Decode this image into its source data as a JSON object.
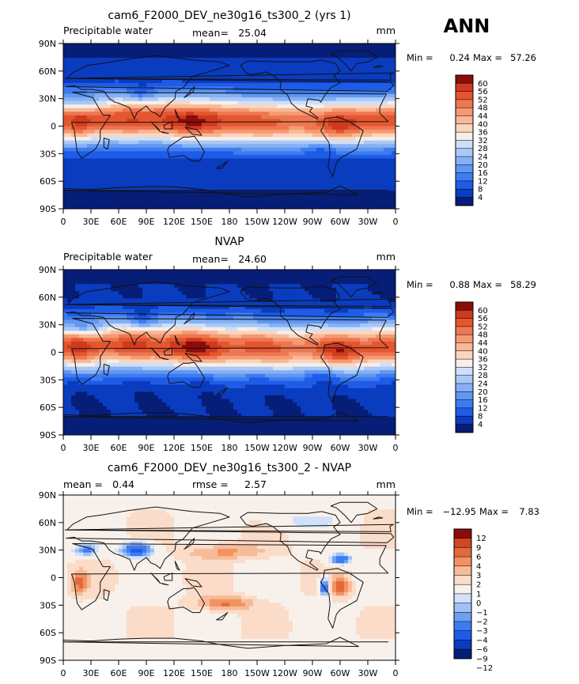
{
  "season": "ANN",
  "lon_ticks": [
    "0",
    "30E",
    "60E",
    "90E",
    "120E",
    "150E",
    "180",
    "150W",
    "120W",
    "90W",
    "60W",
    "30W",
    "0"
  ],
  "lat_ticks": [
    "90N",
    "60N",
    "30N",
    "0",
    "30S",
    "60S",
    "90S"
  ],
  "palette_seq": [
    "#071e78",
    "#0a3cc0",
    "#1e5ce8",
    "#3d7cf0",
    "#5f97f3",
    "#86b0f3",
    "#a9c8f6",
    "#cde0fa",
    "#f6eee8",
    "#fbd6bf",
    "#f8b896",
    "#f59a72",
    "#ee7650",
    "#e4562f",
    "#cf3a1e",
    "#8c0c0a"
  ],
  "palette_diff": [
    "#071e78",
    "#0a3cc0",
    "#1e5ce8",
    "#3d7cf0",
    "#6d9ff3",
    "#a1c0f5",
    "#d0e2fa",
    "#f8f1eb",
    "#fbdcc8",
    "#f8bb99",
    "#f2935f",
    "#e46a3a",
    "#d04626",
    "#8c0c0a"
  ],
  "chart_data": [
    {
      "type": "heatmap",
      "title": "cam6_F2000_DEV_ne30g16_ts300_2 (yrs 1)",
      "left_label": "Precipitable water",
      "stat_label": "mean=",
      "stat_value": "25.04",
      "units": "mm",
      "min_label": "Min =",
      "min": "0.24",
      "max_label": "Max =",
      "max": "57.26",
      "colorbar_levels": [
        "60",
        "56",
        "52",
        "48",
        "44",
        "40",
        "36",
        "32",
        "28",
        "24",
        "20",
        "16",
        "12",
        "8",
        "4"
      ]
    },
    {
      "type": "heatmap",
      "title": "NVAP",
      "left_label": "Precipitable water",
      "stat_label": "mean=",
      "stat_value": "24.60",
      "units": "mm",
      "min_label": "Min =",
      "min": "0.88",
      "max_label": "Max =",
      "max": "58.29",
      "colorbar_levels": [
        "60",
        "56",
        "52",
        "48",
        "44",
        "40",
        "36",
        "32",
        "28",
        "24",
        "20",
        "16",
        "12",
        "8",
        "4"
      ]
    },
    {
      "type": "heatmap",
      "title": "cam6_F2000_DEV_ne30g16_ts300_2 - NVAP",
      "left_label": "mean =",
      "left_value": "0.44",
      "stat_label": "rmse =",
      "stat_value": "2.57",
      "units": "mm",
      "min_label": "Min =",
      "min": "−12.95",
      "max_label": "Max =",
      "max": "7.83",
      "colorbar_levels": [
        "12",
        "9",
        "6",
        "4",
        "3",
        "2",
        "1",
        "0",
        "−1",
        "−2",
        "−3",
        "−4",
        "−6",
        "−9",
        "−12"
      ]
    }
  ]
}
